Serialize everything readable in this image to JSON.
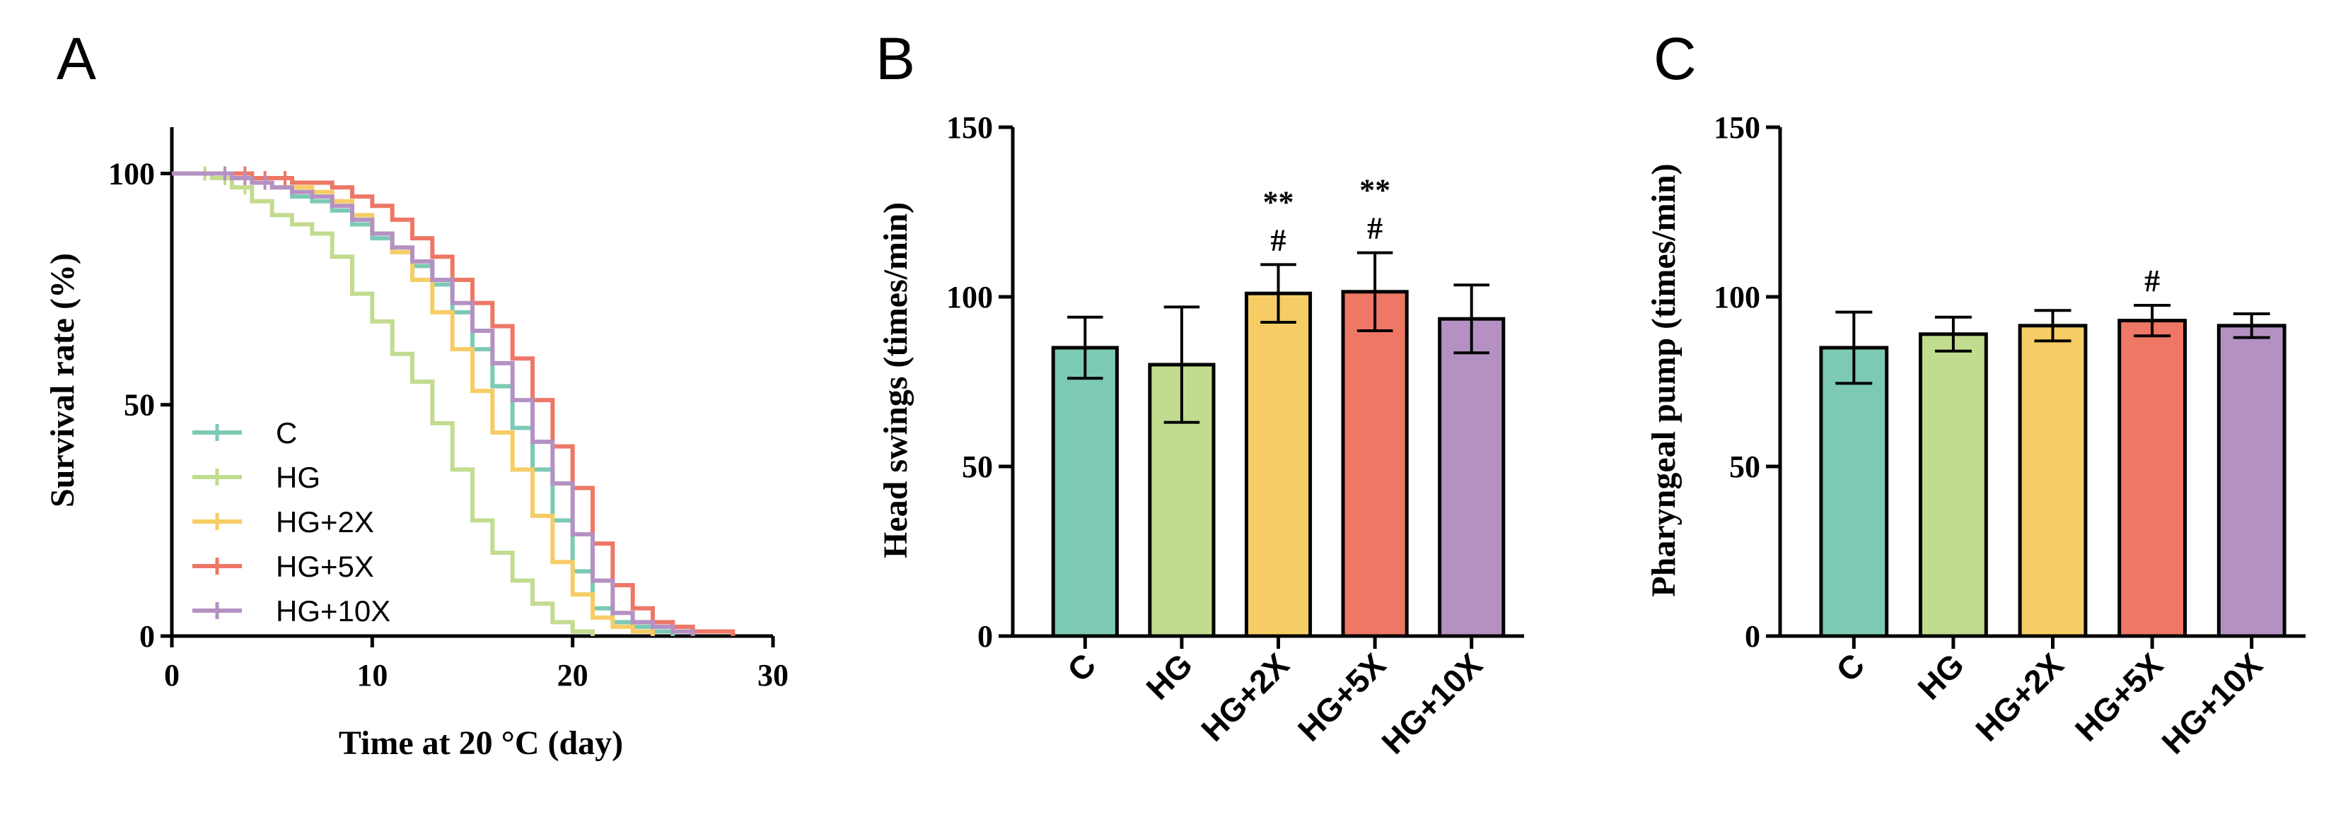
{
  "colors": {
    "C": "#7ccab6",
    "HG": "#c2dc8f",
    "HG+2X": "#f6cd65",
    "HG+5X": "#ee7766",
    "HG+10X": "#b591c3"
  },
  "chart_data": [
    {
      "panel": "A",
      "type": "line",
      "title": "",
      "xlabel": "Time at 20 °C (day)",
      "ylabel": "Survival rate  (%)",
      "xlim": [
        0,
        30
      ],
      "ylim": [
        0,
        110
      ],
      "xticks": [
        0,
        10,
        20,
        30
      ],
      "yticks": [
        0,
        50,
        100
      ],
      "legend_position": "bottom-left",
      "series": [
        {
          "name": "C",
          "x": [
            0,
            2,
            3,
            4,
            5,
            6,
            7,
            8,
            9,
            10,
            11,
            12,
            13,
            14,
            15,
            16,
            17,
            18,
            19,
            20,
            21,
            22,
            23,
            24,
            25
          ],
          "y": [
            100,
            100,
            99,
            98,
            97,
            95,
            94,
            92,
            89,
            86,
            83,
            80,
            76,
            70,
            62,
            54,
            45,
            36,
            25,
            14,
            6,
            3,
            2,
            1,
            0
          ]
        },
        {
          "name": "HG",
          "x": [
            0,
            2,
            3,
            4,
            5,
            6,
            7,
            8,
            9,
            10,
            11,
            12,
            13,
            14,
            15,
            16,
            17,
            18,
            19,
            20,
            21
          ],
          "y": [
            100,
            99,
            97,
            94,
            91,
            89,
            87,
            82,
            74,
            68,
            61,
            55,
            46,
            36,
            25,
            18,
            12,
            7,
            3,
            1,
            0
          ]
        },
        {
          "name": "HG+2X",
          "x": [
            0,
            3,
            4,
            5,
            6,
            7,
            8,
            9,
            10,
            11,
            12,
            13,
            14,
            15,
            16,
            17,
            18,
            19,
            20,
            21,
            22,
            23,
            24
          ],
          "y": [
            100,
            99,
            98,
            97,
            97,
            96,
            94,
            91,
            87,
            83,
            77,
            70,
            62,
            53,
            44,
            36,
            26,
            16,
            9,
            4,
            2,
            1,
            0
          ]
        },
        {
          "name": "HG+5X",
          "x": [
            0,
            4,
            5,
            6,
            7,
            8,
            9,
            10,
            11,
            12,
            13,
            14,
            15,
            16,
            17,
            18,
            19,
            20,
            21,
            22,
            23,
            24,
            25,
            26,
            27,
            28
          ],
          "y": [
            100,
            99,
            99,
            98,
            98,
            97,
            95,
            93,
            90,
            86,
            82,
            77,
            72,
            67,
            60,
            51,
            41,
            32,
            20,
            11,
            6,
            3,
            2,
            1,
            1,
            0
          ]
        },
        {
          "name": "HG+10X",
          "x": [
            0,
            3,
            4,
            5,
            6,
            7,
            8,
            9,
            10,
            11,
            12,
            13,
            14,
            15,
            16,
            17,
            18,
            19,
            20,
            21,
            22,
            23,
            24,
            25,
            26
          ],
          "y": [
            100,
            99,
            98,
            97,
            96,
            95,
            93,
            90,
            87,
            84,
            81,
            77,
            72,
            66,
            59,
            51,
            42,
            33,
            22,
            12,
            5,
            3,
            2,
            1,
            0
          ]
        }
      ],
      "legend": [
        "C",
        "HG",
        "HG+2X",
        "HG+5X",
        "HG+10X"
      ]
    },
    {
      "panel": "B",
      "type": "bar",
      "title": "",
      "xlabel": "",
      "ylabel": "Head swings (times/min)",
      "ylim": [
        0,
        150
      ],
      "yticks": [
        0,
        50,
        100,
        150
      ],
      "categories": [
        "C",
        "HG",
        "HG+2X",
        "HG+5X",
        "HG+10X"
      ],
      "values": [
        85,
        80,
        101,
        101.5,
        93.5
      ],
      "errors": [
        9,
        17,
        8.5,
        11.5,
        10
      ],
      "annotations": [
        {
          "category": "HG+2X",
          "lines": [
            "**",
            "#"
          ]
        },
        {
          "category": "HG+5X",
          "lines": [
            "**",
            "#"
          ]
        }
      ]
    },
    {
      "panel": "C",
      "type": "bar",
      "title": "",
      "xlabel": "",
      "ylabel": "Pharyngeal pump (times/min)",
      "ylim": [
        0,
        150
      ],
      "yticks": [
        0,
        50,
        100,
        150
      ],
      "categories": [
        "C",
        "HG",
        "HG+2X",
        "HG+5X",
        "HG+10X"
      ],
      "values": [
        85,
        89,
        91.5,
        93,
        91.5
      ],
      "errors": [
        10.5,
        5,
        4.5,
        4.5,
        3.5
      ],
      "annotations": [
        {
          "category": "HG+5X",
          "lines": [
            "#"
          ]
        }
      ]
    }
  ]
}
